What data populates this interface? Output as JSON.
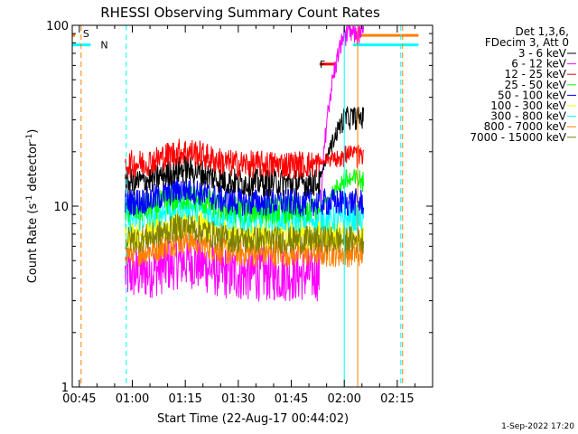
{
  "chart_data": {
    "type": "line",
    "title": "RHESSI Observing Summary Count Rates",
    "xlabel": "Start Time (22-Aug-17 00:44:02)",
    "ylabel_main": "Count Rate (s",
    "ylabel_sup1": "-1",
    "ylabel_mid": " detector",
    "ylabel_sup2": "-1",
    "ylabel_end": ")",
    "yscale": "log",
    "ylim": [
      1,
      100
    ],
    "xlim_minutes": [
      -2,
      100
    ],
    "x_ticks": [
      {
        "label": "00:45",
        "min": 0
      },
      {
        "label": "01:00",
        "min": 15
      },
      {
        "label": "01:15",
        "min": 30
      },
      {
        "label": "01:30",
        "min": 45
      },
      {
        "label": "01:45",
        "min": 60
      },
      {
        "label": "02:00",
        "min": 75
      },
      {
        "label": "02:15",
        "min": 90
      }
    ],
    "y_ticks": [
      {
        "label": "1",
        "value": 1
      },
      {
        "label": "10",
        "value": 10
      },
      {
        "label": "100",
        "value": 100
      }
    ],
    "legend_header": [
      "Det 1,3,6,",
      "FDecim 3, Att 0"
    ],
    "series": [
      {
        "name": "3 - 6 keV",
        "color": "#000000",
        "base": 13.5
      },
      {
        "name": "6 - 12 keV",
        "color": "#ff00ff",
        "base": 4.2
      },
      {
        "name": "12 - 25 keV",
        "color": "#ff0000",
        "base": 17.0
      },
      {
        "name": "25 - 50 keV",
        "color": "#00ff00",
        "base": 9.5
      },
      {
        "name": "50 - 100 keV",
        "color": "#0000ff",
        "base": 10.5
      },
      {
        "name": "100 - 300 keV",
        "color": "#ffff00",
        "base": 7.0
      },
      {
        "name": "300 - 800 keV",
        "color": "#00ffff",
        "base": 8.5
      },
      {
        "name": "800 - 7000 keV",
        "color": "#ff8000",
        "base": 5.5
      },
      {
        "name": "7000 - 15000 keV",
        "color": "#808000",
        "base": 6.5
      }
    ],
    "data_range_minutes": [
      -2.0,
      80.5
    ],
    "flags": [
      {
        "label": "S",
        "color": "#ff8000",
        "x_min": -0.5,
        "y": 90
      },
      {
        "label": "N",
        "color": "#00ffff",
        "x_min": 4.5,
        "y": 78
      },
      {
        "label": "F",
        "color": "#ff0000",
        "x_min": 66.5,
        "y": 61
      }
    ],
    "flag_bars": [
      {
        "color": "#00ffff",
        "x_range": [
          -2,
          3.2
        ],
        "y": 78
      },
      {
        "color": "#ff8000",
        "x_range": [
          -2,
          -1.2
        ],
        "y": 88
      },
      {
        "color": "#ff0000",
        "x_range": [
          68.0,
          72.5
        ],
        "y": 61
      },
      {
        "color": "#00ffff",
        "x_range": [
          77.5,
          96.0
        ],
        "y": 78
      },
      {
        "color": "#ff8000",
        "x_range": [
          79.5,
          96.0
        ],
        "y": 88
      }
    ],
    "vlines": [
      {
        "x_min": 0.5,
        "color": "#ff8000",
        "style": "dashed"
      },
      {
        "x_min": 13.3,
        "color": "#00ffff",
        "style": "dashed"
      },
      {
        "x_min": 75.0,
        "color": "#00ffff",
        "style": "solid"
      },
      {
        "x_min": 78.8,
        "color": "#ff8000",
        "style": "solid"
      },
      {
        "x_min": 91.0,
        "color": "#00ffff",
        "style": "dashed"
      },
      {
        "x_min": 91.5,
        "color": "#ff8000",
        "style": "dashed"
      }
    ],
    "flare_peaks": {
      "6 - 12 keV": 90,
      "3 - 6 keV": 31,
      "12 - 25 keV": 19,
      "25 - 50 keV": 14
    }
  },
  "footer": {
    "date": "1-Sep-2022 17:20"
  }
}
